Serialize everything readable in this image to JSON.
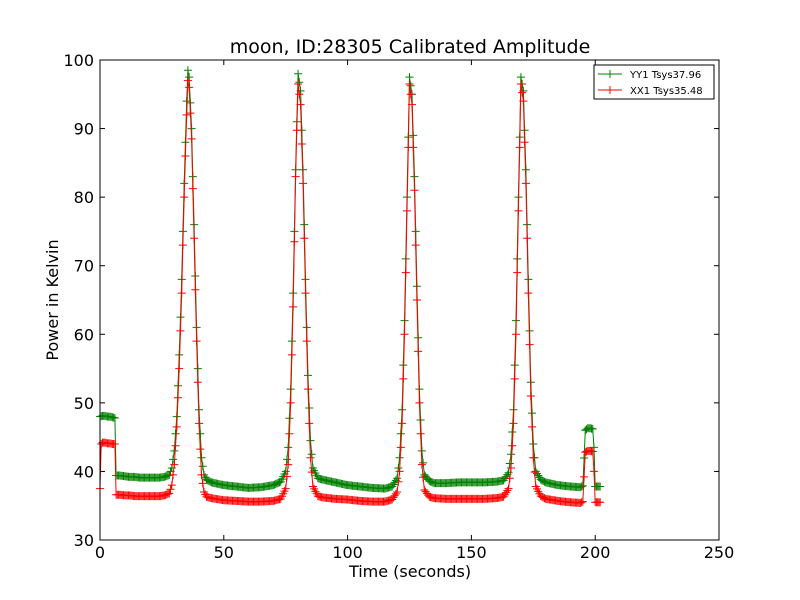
{
  "chart_data": {
    "type": "line",
    "title": "moon, ID:28305 Calibrated Amplitude",
    "xlabel": "Time (seconds)",
    "ylabel": "Power in Kelvin",
    "xlim": [
      0,
      250
    ],
    "ylim": [
      30,
      100
    ],
    "x_ticks": [
      0,
      50,
      100,
      150,
      200,
      250
    ],
    "y_ticks": [
      30,
      40,
      50,
      60,
      70,
      80,
      90,
      100
    ],
    "grid": false,
    "legend_position": "top-right",
    "marker": "+",
    "series": [
      {
        "name": "YY1 Tsys37.96",
        "color": "#008000",
        "points": [
          [
            0,
            48.0
          ],
          [
            1,
            48.1
          ],
          [
            2,
            48.1
          ],
          [
            3,
            48.0
          ],
          [
            4,
            48.0
          ],
          [
            5,
            47.9
          ],
          [
            6,
            47.8
          ],
          [
            6.5,
            39.4
          ],
          [
            8,
            39.4
          ],
          [
            10,
            39.3
          ],
          [
            12,
            39.2
          ],
          [
            14,
            39.2
          ],
          [
            16,
            39.1
          ],
          [
            18,
            39.1
          ],
          [
            20,
            39.1
          ],
          [
            22,
            39.1
          ],
          [
            24,
            39.1
          ],
          [
            26,
            39.2
          ],
          [
            28,
            39.5
          ],
          [
            29,
            40.5
          ],
          [
            30,
            43.0
          ],
          [
            31,
            48.0
          ],
          [
            32,
            57.0
          ],
          [
            33,
            68.0
          ],
          [
            34,
            82.0
          ],
          [
            35,
            94.0
          ],
          [
            35.5,
            98.5
          ],
          [
            36,
            97.5
          ],
          [
            37,
            90.0
          ],
          [
            38,
            76.0
          ],
          [
            39,
            61.0
          ],
          [
            40,
            49.0
          ],
          [
            41,
            42.0
          ],
          [
            42,
            39.5
          ],
          [
            43,
            38.8
          ],
          [
            45,
            38.4
          ],
          [
            50,
            38.0
          ],
          [
            55,
            37.8
          ],
          [
            60,
            37.6
          ],
          [
            65,
            37.7
          ],
          [
            70,
            38.0
          ],
          [
            73,
            38.5
          ],
          [
            75,
            40.0
          ],
          [
            76,
            43.5
          ],
          [
            77,
            52.0
          ],
          [
            78,
            66.0
          ],
          [
            79,
            84.0
          ],
          [
            80,
            98.0
          ],
          [
            81,
            95.5
          ],
          [
            82,
            84.0
          ],
          [
            83,
            68.0
          ],
          [
            84,
            54.0
          ],
          [
            85,
            44.5
          ],
          [
            86,
            40.5
          ],
          [
            88,
            39.0
          ],
          [
            90,
            38.8
          ],
          [
            95,
            38.4
          ],
          [
            100,
            38.0
          ],
          [
            105,
            37.8
          ],
          [
            110,
            37.6
          ],
          [
            115,
            37.5
          ],
          [
            118,
            37.8
          ],
          [
            120,
            39.0
          ],
          [
            121,
            42.0
          ],
          [
            122,
            49.0
          ],
          [
            123,
            62.0
          ],
          [
            124,
            80.0
          ],
          [
            125,
            97.5
          ],
          [
            126,
            95.0
          ],
          [
            127,
            83.0
          ],
          [
            128,
            67.0
          ],
          [
            129,
            52.0
          ],
          [
            130,
            43.0
          ],
          [
            131,
            39.5
          ],
          [
            133,
            38.6
          ],
          [
            135,
            38.3
          ],
          [
            140,
            38.3
          ],
          [
            145,
            38.4
          ],
          [
            150,
            38.4
          ],
          [
            155,
            38.4
          ],
          [
            160,
            38.5
          ],
          [
            163,
            38.7
          ],
          [
            165,
            39.8
          ],
          [
            166,
            42.5
          ],
          [
            167,
            49.0
          ],
          [
            168,
            62.0
          ],
          [
            169,
            80.0
          ],
          [
            170,
            97.5
          ],
          [
            171,
            95.5
          ],
          [
            172,
            84.0
          ],
          [
            173,
            68.0
          ],
          [
            174,
            53.0
          ],
          [
            175,
            44.0
          ],
          [
            176,
            40.0
          ],
          [
            178,
            38.8
          ],
          [
            180,
            38.4
          ],
          [
            185,
            38.0
          ],
          [
            190,
            37.8
          ],
          [
            194,
            37.7
          ],
          [
            195,
            37.9
          ],
          [
            196,
            46.0
          ],
          [
            197,
            46.3
          ],
          [
            198,
            46.3
          ],
          [
            199,
            46.2
          ],
          [
            199.5,
            43.5
          ],
          [
            200,
            37.8
          ],
          [
            201,
            37.8
          ],
          [
            202,
            37.8
          ]
        ]
      },
      {
        "name": "XX1 Tsys35.48",
        "color": "#ff0000",
        "points": [
          [
            0,
            37.5
          ],
          [
            0.5,
            44.0
          ],
          [
            1,
            44.2
          ],
          [
            2,
            44.2
          ],
          [
            3,
            44.1
          ],
          [
            4,
            44.1
          ],
          [
            5,
            44.0
          ],
          [
            6,
            44.0
          ],
          [
            6.5,
            36.6
          ],
          [
            8,
            36.6
          ],
          [
            10,
            36.5
          ],
          [
            12,
            36.5
          ],
          [
            14,
            36.4
          ],
          [
            16,
            36.4
          ],
          [
            18,
            36.4
          ],
          [
            20,
            36.4
          ],
          [
            22,
            36.4
          ],
          [
            24,
            36.4
          ],
          [
            26,
            36.5
          ],
          [
            28,
            36.8
          ],
          [
            29,
            38.0
          ],
          [
            30,
            41.0
          ],
          [
            31,
            46.5
          ],
          [
            32,
            55.0
          ],
          [
            33,
            66.0
          ],
          [
            34,
            80.0
          ],
          [
            35,
            92.0
          ],
          [
            35.5,
            97.0
          ],
          [
            36,
            96.0
          ],
          [
            37,
            88.5
          ],
          [
            38,
            74.0
          ],
          [
            39,
            59.0
          ],
          [
            40,
            47.0
          ],
          [
            41,
            39.5
          ],
          [
            42,
            37.0
          ],
          [
            43,
            36.3
          ],
          [
            45,
            36.1
          ],
          [
            50,
            35.8
          ],
          [
            55,
            35.7
          ],
          [
            60,
            35.6
          ],
          [
            65,
            35.6
          ],
          [
            70,
            35.7
          ],
          [
            73,
            36.0
          ],
          [
            75,
            37.5
          ],
          [
            76,
            41.0
          ],
          [
            77,
            50.0
          ],
          [
            78,
            64.0
          ],
          [
            79,
            83.0
          ],
          [
            80,
            96.5
          ],
          [
            81,
            93.5
          ],
          [
            82,
            82.0
          ],
          [
            83,
            66.0
          ],
          [
            84,
            52.0
          ],
          [
            85,
            42.0
          ],
          [
            86,
            37.8
          ],
          [
            88,
            36.4
          ],
          [
            90,
            36.2
          ],
          [
            95,
            36.0
          ],
          [
            100,
            35.9
          ],
          [
            105,
            35.7
          ],
          [
            110,
            35.6
          ],
          [
            115,
            35.6
          ],
          [
            118,
            35.9
          ],
          [
            120,
            37.0
          ],
          [
            121,
            40.0
          ],
          [
            122,
            47.0
          ],
          [
            123,
            60.0
          ],
          [
            124,
            78.0
          ],
          [
            125,
            96.5
          ],
          [
            126,
            93.5
          ],
          [
            127,
            81.0
          ],
          [
            128,
            65.0
          ],
          [
            129,
            50.0
          ],
          [
            130,
            41.0
          ],
          [
            131,
            37.3
          ],
          [
            133,
            36.3
          ],
          [
            135,
            36.1
          ],
          [
            140,
            36.0
          ],
          [
            145,
            36.0
          ],
          [
            150,
            36.0
          ],
          [
            155,
            36.0
          ],
          [
            160,
            36.1
          ],
          [
            163,
            36.3
          ],
          [
            165,
            37.5
          ],
          [
            166,
            40.5
          ],
          [
            167,
            47.0
          ],
          [
            168,
            60.0
          ],
          [
            169,
            78.0
          ],
          [
            170,
            96.5
          ],
          [
            171,
            94.0
          ],
          [
            172,
            82.0
          ],
          [
            173,
            66.0
          ],
          [
            174,
            51.0
          ],
          [
            175,
            42.0
          ],
          [
            176,
            37.8
          ],
          [
            178,
            36.4
          ],
          [
            180,
            36.0
          ],
          [
            185,
            35.7
          ],
          [
            190,
            35.5
          ],
          [
            194,
            35.4
          ],
          [
            195,
            35.6
          ],
          [
            196,
            42.8
          ],
          [
            197,
            43.0
          ],
          [
            198,
            43.0
          ],
          [
            199,
            42.9
          ],
          [
            199.5,
            40.0
          ],
          [
            200,
            35.5
          ],
          [
            201,
            35.5
          ],
          [
            202,
            35.5
          ]
        ]
      }
    ]
  }
}
